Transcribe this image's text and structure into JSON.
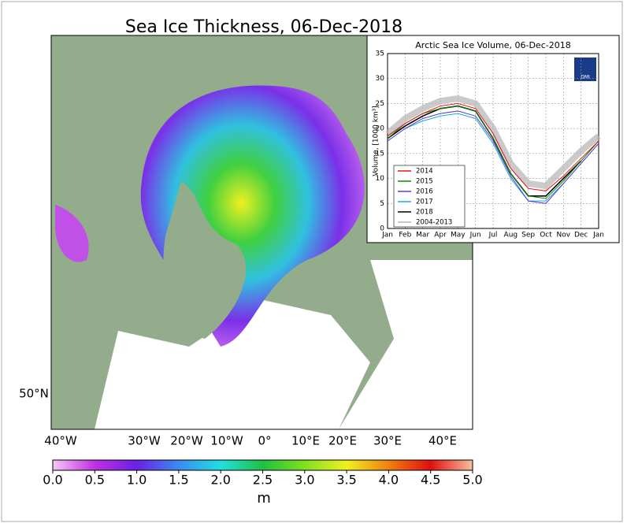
{
  "map": {
    "title": "Sea Ice Thickness, 06-Dec-2018",
    "lon_labels": [
      "40°W",
      "30°W",
      "20°W",
      "10°W",
      "0°",
      "10°E",
      "20°E",
      "30°E",
      "40°E"
    ],
    "lat_label": "50°N",
    "colorbar": {
      "label": "m",
      "ticks": [
        {
          "value": 0,
          "label": "0.0"
        },
        {
          "value": 0.5,
          "label": "0.5"
        },
        {
          "value": 1,
          "label": "1.0"
        },
        {
          "value": 1.5,
          "label": "1.5"
        },
        {
          "value": 2,
          "label": "2.0"
        },
        {
          "value": 2.5,
          "label": "2.5"
        },
        {
          "value": 3,
          "label": "3.0"
        },
        {
          "value": 3.5,
          "label": "3.5"
        },
        {
          "value": 4,
          "label": "4.0"
        },
        {
          "value": 4.5,
          "label": "4.5"
        },
        {
          "value": 5,
          "label": "5.0"
        }
      ],
      "lim": [
        0,
        5
      ]
    }
  },
  "chart_data": {
    "type": "line",
    "title": "Arctic Sea Ice Volume, 06-Dec-2018",
    "y_label": "Volume, [1000 km³]",
    "logo": "DMI",
    "categories": [
      "Jan",
      "Feb",
      "Mar",
      "Apr",
      "May",
      "Jun",
      "Jul",
      "Aug",
      "Sep",
      "Oct",
      "Nov",
      "Dec",
      "Jan"
    ],
    "ylim": [
      0,
      35
    ],
    "yticks": [
      0,
      5,
      10,
      15,
      20,
      25,
      30,
      35
    ],
    "grid": true,
    "legend": "lower left",
    "series": [
      {
        "name": "2014",
        "color": "#e8141c",
        "values": [
          18.5,
          21,
          23,
          24.5,
          25,
          24,
          19,
          12,
          8,
          7.5,
          10.5,
          14,
          17.5
        ]
      },
      {
        "name": "2015",
        "color": "#0a8a0a",
        "values": [
          18,
          21,
          23,
          24,
          24.5,
          23.5,
          18,
          11,
          6.5,
          6,
          9.5,
          13.5,
          17.5
        ]
      },
      {
        "name": "2016",
        "color": "#5a3cd0",
        "values": [
          17.5,
          20,
          22,
          23,
          23.5,
          22.5,
          17.5,
          10.5,
          5.5,
          5,
          9,
          13,
          17
        ]
      },
      {
        "name": "2017",
        "color": "#1ea8dc",
        "values": [
          17.5,
          20,
          21.5,
          22.5,
          23,
          22,
          17,
          10,
          5.5,
          5.5,
          9,
          13,
          17
        ]
      },
      {
        "name": "2018",
        "color": "#000000",
        "values": [
          18,
          20.5,
          22.5,
          24,
          24.5,
          23.5,
          18,
          11,
          6.5,
          6.5,
          10,
          13.5,
          null
        ]
      },
      {
        "name": "2004-2013",
        "color": "#b4b4b4",
        "values": [
          19,
          22,
          24,
          25.5,
          26,
          25,
          20,
          13,
          9,
          8.5,
          12,
          15.5,
          18.5
        ]
      }
    ]
  }
}
